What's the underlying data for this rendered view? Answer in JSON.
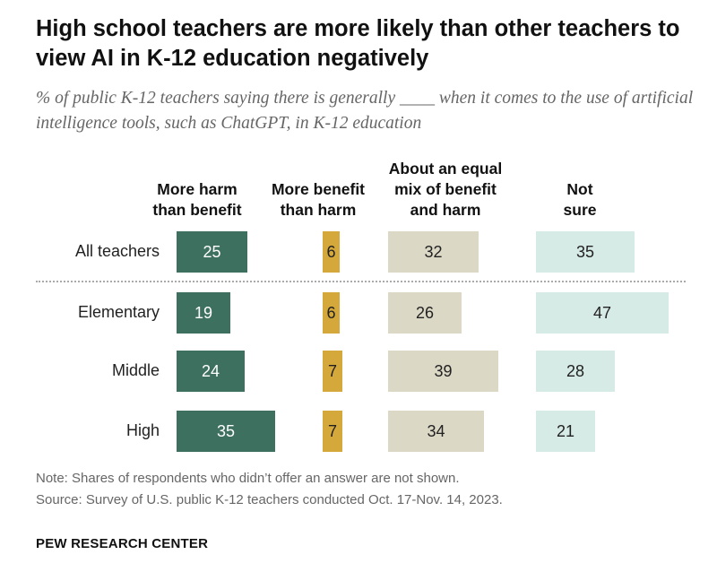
{
  "title": "High school teachers are more likely than other teachers to view AI in K-12 education negatively",
  "subtitle": "% of public K-12 teachers saying there is generally ____ when it comes to the use of artificial intelligence tools, such as ChatGPT, in K-12 education",
  "note": "Note: Shares of respondents who didn’t offer an answer are not shown.",
  "source": "Source: Survey of U.S. public K-12 teachers conducted Oct. 17-Nov. 14, 2023.",
  "brand": "PEW RESEARCH CENTER",
  "colors": {
    "more_harm": "#3e7060",
    "more_benefit": "#d4a83a",
    "equal_mix": "#dbd8c6",
    "not_sure": "#d6ebe6"
  },
  "chart_data": {
    "type": "bar",
    "orientation": "horizontal-multi-column",
    "categories": [
      "All teachers",
      "Elementary",
      "Middle",
      "High"
    ],
    "series": [
      {
        "name": "More harm than benefit",
        "values": [
          25,
          19,
          24,
          35
        ]
      },
      {
        "name": "More benefit than harm",
        "values": [
          6,
          6,
          7,
          7
        ]
      },
      {
        "name": "About an equal mix of benefit and harm",
        "values": [
          32,
          26,
          39,
          34
        ]
      },
      {
        "name": "Not sure",
        "values": [
          35,
          47,
          28,
          21
        ]
      }
    ],
    "column_headers": [
      "More harm\nthan benefit",
      "More benefit\nthan harm",
      "About an equal\nmix of benefit\nand harm",
      "Not\nsure"
    ],
    "grid": false
  }
}
